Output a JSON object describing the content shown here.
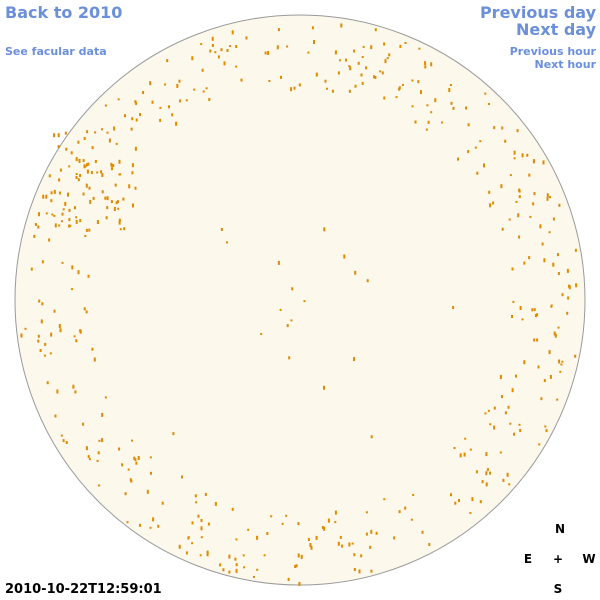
{
  "nav": {
    "back": "Back to 2010",
    "facular": "See facular data",
    "prev_day": "Previous day",
    "next_day": "Next day",
    "prev_hour": "Previous hour",
    "next_hour": "Next hour"
  },
  "timestamp": "2010-10-22T12:59:01",
  "compass": {
    "north": "N",
    "east": "E",
    "center": "+",
    "west": "W",
    "south": "S"
  }
}
